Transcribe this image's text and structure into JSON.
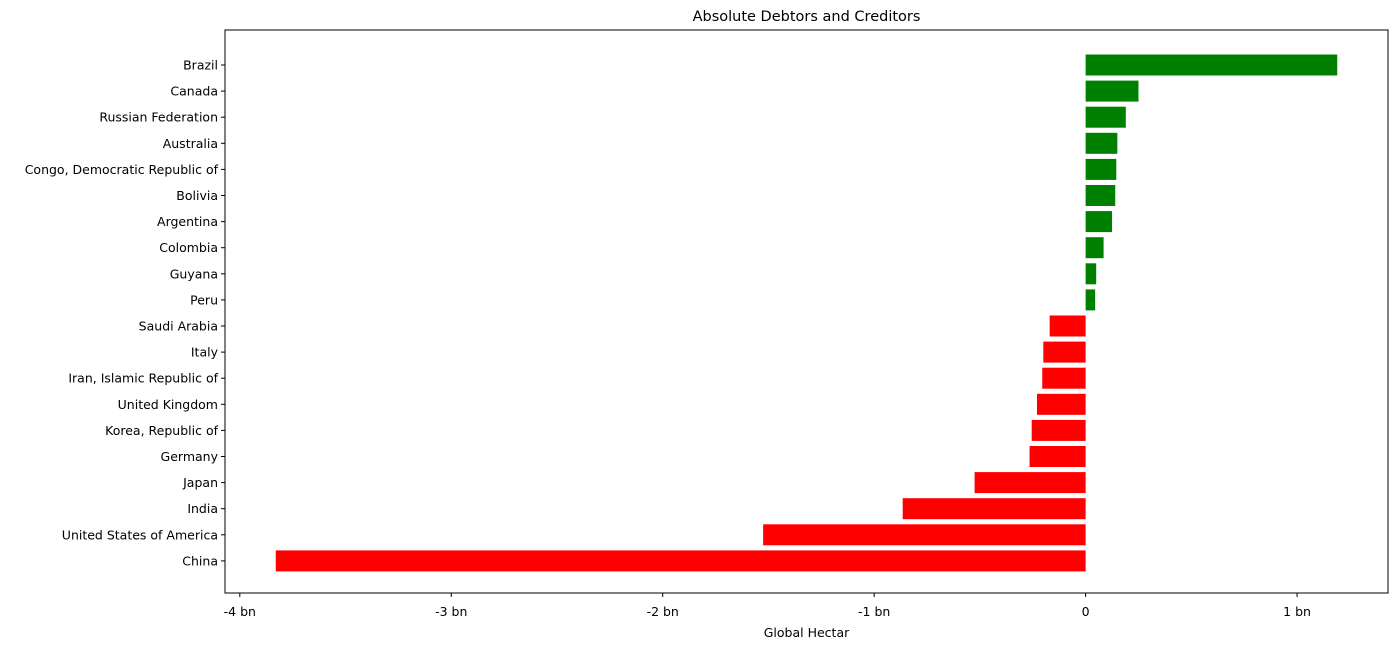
{
  "chart_data": {
    "type": "bar",
    "orientation": "horizontal",
    "title": "Absolute Debtors and Creditors",
    "xlabel": "Global Hectar",
    "ylabel": "",
    "xlim": [
      -4.07,
      1.43
    ],
    "x_unit": "bn",
    "x_ticks": [
      {
        "value": -4,
        "label": "-4 bn"
      },
      {
        "value": -3,
        "label": "-3 bn"
      },
      {
        "value": -2,
        "label": "-2 bn"
      },
      {
        "value": -1,
        "label": "-1 bn"
      },
      {
        "value": 0,
        "label": "0"
      },
      {
        "value": 1,
        "label": "1 bn"
      }
    ],
    "grid": false,
    "legend": "none",
    "colors": {
      "positive": "#008000",
      "negative": "#ff0000"
    },
    "categories": [
      "Brazil",
      "Canada",
      "Russian Federation",
      "Australia",
      "Congo, Democratic Republic of",
      "Bolivia",
      "Argentina",
      "Colombia",
      "Guyana",
      "Peru",
      "Saudi Arabia",
      "Italy",
      "Iran, Islamic Republic of",
      "United Kingdom",
      "Korea, Republic of",
      "Germany",
      "Japan",
      "India",
      "United States of America",
      "China"
    ],
    "values": [
      1.19,
      0.25,
      0.19,
      0.15,
      0.145,
      0.14,
      0.125,
      0.085,
      0.05,
      0.045,
      -0.17,
      -0.2,
      -0.205,
      -0.23,
      -0.255,
      -0.265,
      -0.525,
      -0.865,
      -1.525,
      -3.83
    ]
  }
}
